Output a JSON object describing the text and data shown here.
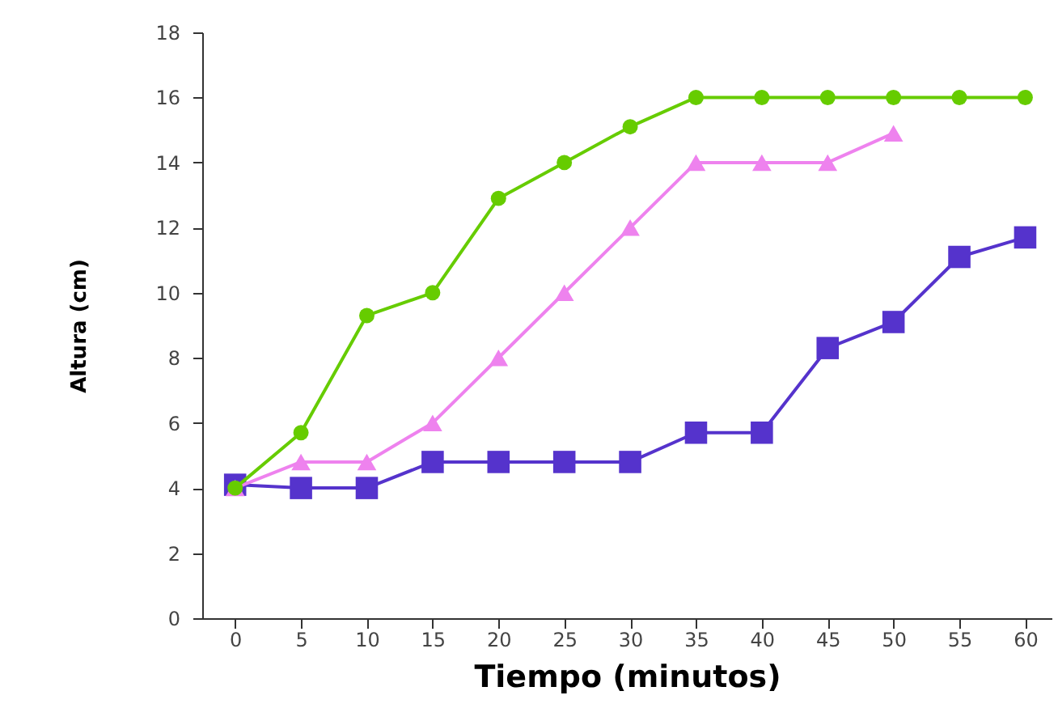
{
  "chart_data": {
    "type": "line",
    "xlabel": "Tiempo (minutos)",
    "ylabel": "Altura (cm)",
    "x": [
      0,
      5,
      10,
      15,
      20,
      25,
      30,
      35,
      40,
      45,
      50,
      55,
      60
    ],
    "xlim": [
      -2.5,
      62
    ],
    "xticks": [
      0,
      5,
      10,
      15,
      20,
      25,
      30,
      35,
      40,
      45,
      50,
      55,
      60
    ],
    "ylim": [
      0,
      18
    ],
    "yticks": [
      0,
      2,
      4,
      6,
      8,
      10,
      12,
      14,
      16,
      18
    ],
    "grid": false,
    "series": [
      {
        "color": "#5533cc",
        "marker": "square",
        "values": [
          4.1,
          4,
          4,
          4.8,
          4.8,
          4.8,
          4.8,
          5.7,
          5.7,
          8.3,
          9.1,
          11.1,
          11.7
        ]
      },
      {
        "color": "#ee82ee",
        "marker": "triangle",
        "values": [
          4,
          4.8,
          4.8,
          6,
          8,
          10,
          12,
          14,
          14,
          14,
          14.9,
          null,
          null
        ]
      },
      {
        "color": "#66cc00",
        "marker": "circle",
        "values": [
          4,
          5.7,
          9.3,
          10,
          12.9,
          14,
          15.1,
          16,
          16,
          16,
          16,
          16,
          16
        ]
      }
    ]
  }
}
